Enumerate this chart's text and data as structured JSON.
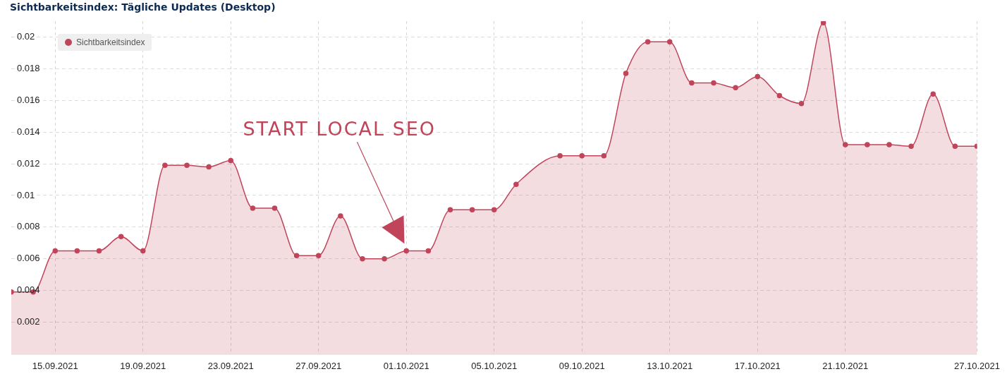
{
  "chart_data": {
    "type": "area",
    "title": "Sichtbarkeitsindex: Tägliche Updates (Desktop)",
    "x": [
      "2021-09-13",
      "2021-09-14",
      "2021-09-15",
      "2021-09-16",
      "2021-09-17",
      "2021-09-18",
      "2021-09-19",
      "2021-09-20",
      "2021-09-21",
      "2021-09-22",
      "2021-09-23",
      "2021-09-24",
      "2021-09-25",
      "2021-09-26",
      "2021-09-27",
      "2021-09-28",
      "2021-09-29",
      "2021-09-30",
      "2021-10-01",
      "2021-10-02",
      "2021-10-03",
      "2021-10-04",
      "2021-10-05",
      "2021-10-06",
      "2021-10-08",
      "2021-10-09",
      "2021-10-10",
      "2021-10-11",
      "2021-10-12",
      "2021-10-13",
      "2021-10-14",
      "2021-10-15",
      "2021-10-16",
      "2021-10-17",
      "2021-10-18",
      "2021-10-19",
      "2021-10-20",
      "2021-10-21",
      "2021-10-22",
      "2021-10-23",
      "2021-10-24",
      "2021-10-25",
      "2021-10-26",
      "2021-10-27"
    ],
    "series": [
      {
        "name": "Sichtbarkeitsindex",
        "color": "#c0455a",
        "values": [
          0.0039,
          0.0039,
          0.0065,
          0.0065,
          0.0065,
          0.0074,
          0.0065,
          0.0119,
          0.0119,
          0.0118,
          0.0122,
          0.0092,
          0.0092,
          0.0062,
          0.0062,
          0.0087,
          0.006,
          0.006,
          0.0065,
          0.0065,
          0.0091,
          0.0091,
          0.0091,
          0.0107,
          0.0125,
          0.0125,
          0.0125,
          0.0177,
          0.0197,
          0.0197,
          0.0171,
          0.0171,
          0.0168,
          0.0175,
          0.0163,
          0.0158,
          0.0209,
          0.0132,
          0.0132,
          0.0132,
          0.0131,
          0.0164,
          0.0131,
          0.0131
        ]
      }
    ],
    "xlim": [
      "2021-09-13",
      "2021-10-27"
    ],
    "xticks": [
      {
        "value": "2021-09-15",
        "label": "15.09.2021"
      },
      {
        "value": "2021-09-19",
        "label": "19.09.2021"
      },
      {
        "value": "2021-09-23",
        "label": "23.09.2021"
      },
      {
        "value": "2021-09-27",
        "label": "27.09.2021"
      },
      {
        "value": "2021-10-01",
        "label": "01.10.2021"
      },
      {
        "value": "2021-10-05",
        "label": "05.10.2021"
      },
      {
        "value": "2021-10-09",
        "label": "09.10.2021"
      },
      {
        "value": "2021-10-13",
        "label": "13.10.2021"
      },
      {
        "value": "2021-10-17",
        "label": "17.10.2021"
      },
      {
        "value": "2021-10-21",
        "label": "21.10.2021"
      },
      {
        "value": "2021-10-27",
        "label": "27.10.2021"
      }
    ],
    "ylim": [
      0,
      0.021
    ],
    "yticks": [
      0.002,
      0.004,
      0.006,
      0.008,
      0.01,
      0.012,
      0.014,
      0.016,
      0.018,
      0.02
    ],
    "grid": true,
    "legend": "top left",
    "marker": "circle",
    "line_style": "solid",
    "annotations": [
      "START LOCAL SEO"
    ]
  }
}
